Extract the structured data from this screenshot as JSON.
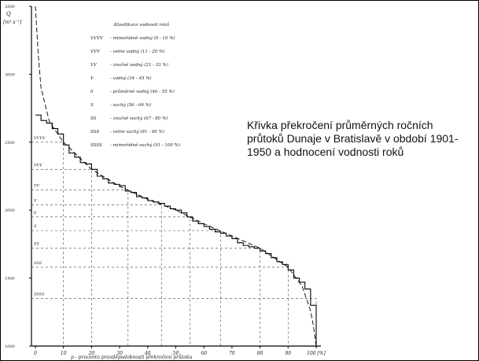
{
  "chart_data": {
    "type": "line",
    "caption": "Křivka překročení průměrných ročních průtoků Dunaje v Bratislavě v období 1901-1950 a hodnocení vodnosti roků",
    "ylabel_symbol": "Q",
    "ylabel_unit": "[m³ s⁻¹]",
    "xlabel": "p - procento pravděpodobnosti překročení průtoku",
    "xlim": [
      0,
      100
    ],
    "ylim": [
      1000,
      3500
    ],
    "xticks": [
      0,
      10,
      20,
      30,
      40,
      50,
      60,
      70,
      80,
      90,
      {
        "value": 100,
        "label": "100 [%]"
      }
    ],
    "yticks": [
      1000,
      1500,
      2000,
      2500,
      3000,
      3500
    ],
    "legend_title": "Klasifikace vodnosti roků",
    "legend_items": [
      {
        "code": "VVVV",
        "text": "- mimořádně vodný (0 - 10 %)"
      },
      {
        "code": "VVV",
        "text": "- velmi vodný (11 - 20 %)"
      },
      {
        "code": "VV",
        "text": "- značně vodný (21 - 33 %)"
      },
      {
        "code": "V",
        "text": "- vodný (34 - 45 %)"
      },
      {
        "code": "0",
        "text": "- průměrně vodný (46 - 55 %)"
      },
      {
        "code": "S",
        "text": "- suchý (56 - 66 %)"
      },
      {
        "code": "SS",
        "text": "- značně suchý (67 - 80 %)"
      },
      {
        "code": "SSS",
        "text": "- velmi suchý (81 - 90 %)"
      },
      {
        "code": "SSSS",
        "text": "- mimořádně suchý (91 - 100 %)"
      }
    ],
    "classes": [
      {
        "label": "VVVV",
        "value": 2500,
        "p": 10
      },
      {
        "label": "VVV",
        "value": 2300,
        "p": 20
      },
      {
        "label": "VV",
        "value": 2150,
        "p": 33
      },
      {
        "label": "V",
        "value": 2040,
        "p": 45
      },
      {
        "label": "0",
        "value": 1950,
        "p": 55
      },
      {
        "label": "S",
        "value": 1850,
        "p": 66
      },
      {
        "label": "SS",
        "value": 1720,
        "p": 80
      },
      {
        "label": "SSS",
        "value": 1580,
        "p": 90
      },
      {
        "label": "SSSS",
        "value": 1350,
        "p": 100
      }
    ],
    "series": [
      {
        "style": "step",
        "color": "#000000",
        "x": [
          0,
          2,
          4,
          6,
          8,
          10,
          12,
          14,
          16,
          18,
          20,
          22,
          24,
          26,
          28,
          30,
          32,
          34,
          36,
          38,
          40,
          42,
          44,
          46,
          48,
          50,
          52,
          54,
          56,
          58,
          60,
          62,
          64,
          66,
          68,
          70,
          72,
          74,
          76,
          78,
          80,
          82,
          84,
          86,
          88,
          90,
          92,
          94,
          96,
          98
        ],
        "values": [
          2700,
          2660,
          2640,
          2600,
          2560,
          2480,
          2420,
          2390,
          2350,
          2340,
          2300,
          2250,
          2230,
          2200,
          2190,
          2180,
          2140,
          2130,
          2100,
          2090,
          2070,
          2060,
          2050,
          2030,
          2010,
          2000,
          1980,
          1950,
          1920,
          1900,
          1880,
          1860,
          1840,
          1830,
          1810,
          1790,
          1760,
          1740,
          1730,
          1720,
          1700,
          1680,
          1650,
          1620,
          1600,
          1560,
          1500,
          1470,
          1420,
          1300
        ]
      },
      {
        "style": "dashed",
        "color": "#000000",
        "x": [
          0,
          1,
          2,
          5,
          10,
          20,
          30,
          40,
          50,
          60,
          70,
          80,
          90,
          95,
          98,
          99,
          100
        ],
        "values": [
          3500,
          3150,
          2900,
          2650,
          2500,
          2300,
          2175,
          2080,
          2000,
          1900,
          1810,
          1720,
          1580,
          1440,
          1260,
          1150,
          1000
        ]
      }
    ]
  }
}
